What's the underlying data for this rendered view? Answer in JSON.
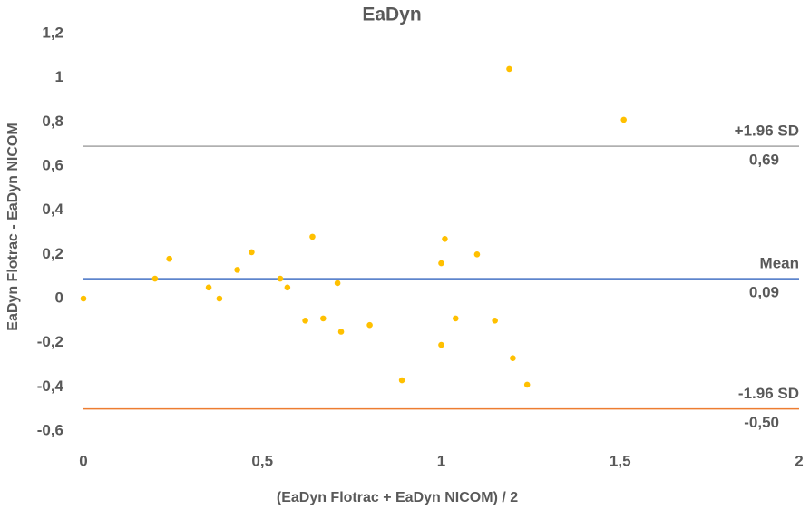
{
  "chart_data": {
    "type": "scatter",
    "title": "EaDyn",
    "x_label": "(EaDyn Flotrac + EaDyn NICOM) / 2",
    "y_label": "EaDyn Flotrac - EaDyn NICOM",
    "color": "#ffc000",
    "x": [
      0,
      0.2,
      0.24,
      0.35,
      0.38,
      0.43,
      0.47,
      0.55,
      0.57,
      0.64,
      0.62,
      0.67,
      0.71,
      0.72,
      0.8,
      0.89,
      1.0,
      1.01,
      1.0,
      1.04,
      1.1,
      1.15,
      1.19,
      1.2,
      1.24,
      1.51
    ],
    "values": [
      0,
      0.09,
      0.18,
      0.05,
      0,
      0.13,
      0.21,
      0.09,
      0.05,
      0.28,
      -0.1,
      -0.09,
      0.07,
      -0.15,
      -0.12,
      -0.37,
      0.16,
      0.27,
      -0.21,
      -0.09,
      0.2,
      -0.1,
      1.04,
      -0.27,
      -0.39,
      0.81
    ],
    "xlim": [
      0,
      2
    ],
    "xticks": [
      0,
      {
        "value": 0.5,
        "label": "0,5"
      },
      1,
      {
        "value": 1.5,
        "label": "1,5"
      },
      2
    ],
    "ylim": [
      -0.6,
      1.2
    ],
    "yticks": [
      {
        "value": -0.6,
        "label": "-0,6"
      },
      {
        "value": -0.4,
        "label": "-0,4"
      },
      {
        "value": -0.2,
        "label": "-0,2"
      },
      0,
      {
        "value": 0.2,
        "label": "0,2"
      },
      {
        "value": 0.4,
        "label": "0,4"
      },
      {
        "value": 0.6,
        "label": "0,6"
      },
      {
        "value": 0.8,
        "label": "0,8"
      },
      1,
      {
        "value": 1.2,
        "label": "1,2"
      }
    ],
    "grid": false,
    "reference_lines": [
      {
        "name": "+1.96 SD",
        "value": 0.69,
        "label": "0,69",
        "color": "#a5a5a5"
      },
      {
        "name": "Mean",
        "value": 0.09,
        "label": "0,09",
        "color": "#4472c4"
      },
      {
        "name": "-1.96 SD",
        "value": -0.5,
        "label": "-0,50",
        "color": "#ed7d31"
      }
    ]
  }
}
